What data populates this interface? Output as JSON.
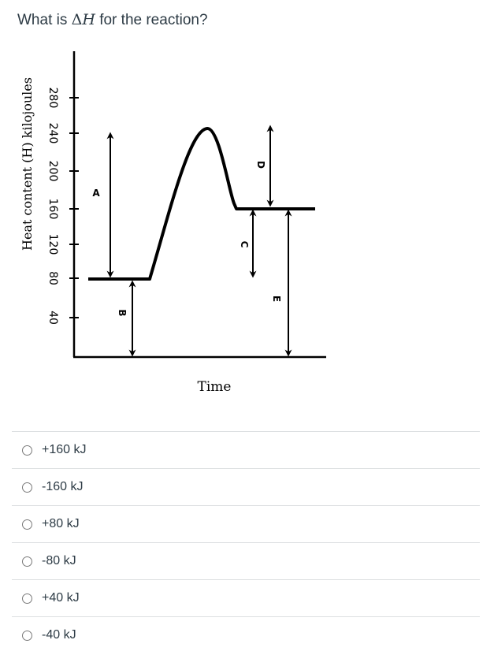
{
  "question": {
    "prefix": "What is ",
    "delta": "Δ",
    "var": "H",
    "suffix": " for the reaction?"
  },
  "diagram": {
    "ylabel": "Heat content (H) kilojoules",
    "xlabel": "Time",
    "yticks": [
      "280",
      "240",
      "200",
      "160",
      "120",
      "80",
      "40"
    ],
    "arrows": [
      "A",
      "B",
      "C",
      "D",
      "E"
    ]
  },
  "answers": [
    {
      "label": "+160 kJ"
    },
    {
      "label": "-160 kJ"
    },
    {
      "label": "+80 kJ"
    },
    {
      "label": "-80 kJ"
    },
    {
      "label": "+40 kJ"
    },
    {
      "label": "-40 kJ"
    }
  ]
}
